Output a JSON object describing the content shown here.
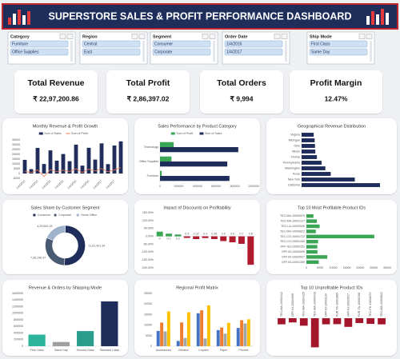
{
  "header": {
    "title": "SUPERSTORE SALES & PROFIT PERFORMANCE DASHBOARD"
  },
  "slicers": [
    {
      "title": "Category",
      "items": [
        "Furniture",
        "Office Supplies"
      ]
    },
    {
      "title": "Region",
      "items": [
        "Central",
        "East"
      ]
    },
    {
      "title": "Segment",
      "items": [
        "Consumer",
        "Corporate"
      ]
    },
    {
      "title": "Order Date",
      "items": [
        "1/4/2016",
        "1/4/2017"
      ]
    },
    {
      "title": "Ship Mode",
      "items": [
        "First Class",
        "Same Day"
      ]
    }
  ],
  "kpis": [
    {
      "label": "Total Revenue",
      "value": "₹ 22,97,200.86"
    },
    {
      "label": "Total Profit",
      "value": "₹ 2,86,397.02"
    },
    {
      "label": "Total Orders",
      "value": "₹ 9,994"
    },
    {
      "label": "Profit Margin",
      "value": "12.47%"
    }
  ],
  "chart_data": [
    {
      "type": "combo",
      "title": "Monthly Revenue & Profit Growth",
      "categories": [
        "1/4/2014",
        null,
        "7/4/2014",
        null,
        "1/4/2015",
        null,
        "7/4/2015",
        null,
        "1/4/2016",
        null,
        "7/4/2016",
        null,
        "1/4/2017",
        null,
        "7/4/2017",
        null
      ],
      "series": [
        {
          "name": "Sum of Sales",
          "type": "bar",
          "color": "#1f2d5a",
          "values": [
            14237,
            4520,
            26700,
            9900,
            24100,
            13400,
            20300,
            12800,
            30100,
            8200,
            26800,
            14500,
            31400,
            9800,
            29200,
            33500
          ]
        },
        {
          "name": "Sum of Profit",
          "type": "line",
          "color": "#e8734a",
          "values": [
            2450,
            860,
            3900,
            -3200,
            4100,
            1800,
            3500,
            2100,
            4900,
            1100,
            4600,
            2600,
            5200,
            1900,
            3800,
            6100
          ]
        }
      ],
      "ylim": [
        -5000,
        35000
      ],
      "yticks": [
        -5000,
        0,
        5000,
        10000,
        15000,
        20000,
        25000,
        30000,
        35000
      ]
    },
    {
      "type": "hbar",
      "title": "Sales Performance by Product Category",
      "categories": [
        "Technology",
        "Office Supplies",
        "Furniture"
      ],
      "series": [
        {
          "name": "Sum of Profit",
          "color": "#3aa655",
          "values": [
            145454.95,
            122490.8,
            18451.27
          ]
        },
        {
          "name": "Sum of Sales",
          "color": "#1f2d5a",
          "values": [
            836154.03,
            719047.03,
            741999.8
          ]
        }
      ],
      "xlim": [
        0,
        1000000
      ],
      "xticks": [
        0,
        200000,
        400000,
        600000,
        800000,
        1000000
      ]
    },
    {
      "type": "hbar",
      "title": "Geographical Revenue Distribution",
      "categories": [
        "Virginia",
        "Michigan",
        "Ohio",
        "Illinois",
        "Florida",
        "Pennsylvania",
        "Washington",
        "Texas",
        "New York",
        "California"
      ],
      "values": [
        70637,
        76270,
        78258,
        80166,
        89474,
        116512,
        138641,
        170188,
        310876,
        457688
      ],
      "color": "#1f2d5a",
      "xlim": [
        0,
        500000
      ]
    },
    {
      "type": "pie",
      "title": "Sales Share by Customer Segment",
      "categories": [
        "Consumer",
        "Corporate",
        "Home Office"
      ],
      "values": [
        1161401.34,
        706146.37,
        429653.15
      ],
      "value_labels": [
        "11,61,401.34",
        "7,06,146.37",
        "4,29,653.15"
      ],
      "colors": [
        "#1f2d5a",
        "#4a5a72",
        "#9fb3cc"
      ]
    },
    {
      "type": "bar",
      "title": "Impact of Discounts on Profitability",
      "categories": [
        "0",
        "0.1",
        "0.2",
        "0.3",
        "0.32",
        "0.4",
        "0.45",
        "0.5",
        "0.6",
        "0.7",
        "0.8"
      ],
      "values": [
        29.5,
        16.9,
        11.7,
        -10.1,
        -17.4,
        -11,
        -17.2,
        -30,
        -37.9,
        -47.6,
        -180.4
      ],
      "pos_color": "#3aa655",
      "neg_color": "#b01c2e",
      "ylim": [
        -200,
        150
      ],
      "yticks": [
        {
          "value": -200,
          "label": "-200.00%"
        },
        {
          "value": -150,
          "label": "-150.00%"
        },
        {
          "value": -100,
          "label": "-100.00%"
        },
        {
          "value": -50,
          "label": "-50.00%"
        },
        {
          "value": 0,
          "label": "0.00%"
        },
        {
          "value": 50,
          "label": "50.00%"
        },
        {
          "value": 100,
          "label": "100.00%"
        },
        {
          "value": 150,
          "label": "150.00%"
        }
      ]
    },
    {
      "type": "hbar",
      "title": "Top 10 Most Profitable Product IDs",
      "categories": [
        "TEC-MA-10000870",
        "TEC-MA-10001127",
        "TEC-LA-10002945",
        "TEC-MA-10000822",
        "TEC-CO-10004722",
        "TEC-CO-10001449",
        "OFF-SU-10000151",
        "OFF-BI-10004995",
        "OFF-BI-10003527",
        "OFF-BI-10001359"
      ],
      "values": [
        2600,
        3900,
        4906,
        3500,
        25199.93,
        4342,
        4050,
        4124,
        7753,
        4570
      ],
      "color": "#3aa655",
      "xlim": [
        0,
        30000
      ],
      "xticks": [
        0,
        5000,
        10000,
        15000,
        20000,
        25000,
        30000
      ]
    },
    {
      "type": "bar",
      "title": "Revenue & Orders by Shipping Mode",
      "categories": [
        "First Class",
        "Same Day",
        "Second Class",
        "Standard Class"
      ],
      "values": [
        351428.42,
        128363.13,
        459193.57,
        1358215.74
      ],
      "colors": [
        "#2bb39b",
        "#a0a0a0",
        "#2a9d8f",
        "#1f2d5a"
      ],
      "ylim": [
        0,
        1600000
      ],
      "yticks": [
        0,
        200000,
        400000,
        600000,
        800000,
        1000000,
        1200000,
        1400000,
        1600000
      ]
    },
    {
      "type": "bar",
      "title": "Regional Profit Matrix",
      "categories": [
        "Accessories",
        "Binders",
        "Copiers",
        "Paper",
        "Phones"
      ],
      "series": [
        {
          "color": "#4472c4",
          "values": [
            7252,
            2500,
            15608,
            7625,
            8655
          ]
        },
        {
          "color": "#ed7d31",
          "values": [
            11195,
            11268,
            17022,
            8836,
            12315
          ]
        },
        {
          "color": "#a5a5a5",
          "values": [
            7005,
            3900,
            3658,
            5947,
            10767
          ]
        },
        {
          "color": "#ffc000",
          "values": [
            16484,
            16097,
            19327,
            11075,
            12756
          ]
        }
      ],
      "ylim": [
        0,
        25000
      ],
      "yticks": [
        0,
        5000,
        10000,
        15000,
        20000,
        25000
      ]
    },
    {
      "type": "bar",
      "title": "Top 10 Unprofitable Product IDs",
      "categories": [
        "TEC-MA-10002412",
        "OFF-BI-10004995",
        "TEC-MA-10004125",
        "TEC-MA-10000418",
        "OFF-BI-10001120",
        "FUR-TA-10001889",
        "OFF-BI-10003527",
        "FUR-TA-10000198",
        "TEC-PH-10001870",
        "TEC-MA-10000822"
      ],
      "values": [
        -1862,
        -1281,
        -2287,
        -8879.97,
        -1850,
        -1811,
        -2638,
        -1480,
        -1725,
        -1869
      ],
      "color": "#a3152b",
      "ylim": [
        -10000,
        0
      ]
    }
  ]
}
